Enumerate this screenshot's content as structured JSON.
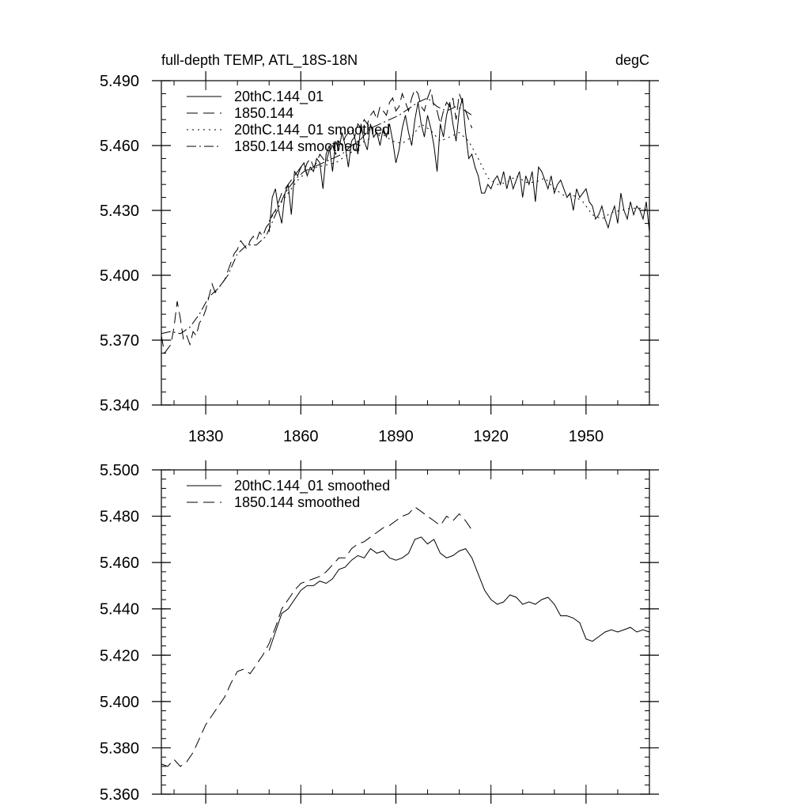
{
  "chart_data": [
    {
      "type": "line",
      "title": "full-depth TEMP, ATL_18S-18N",
      "units": "degC",
      "xlim": [
        1816,
        1970
      ],
      "ylim": [
        5.34,
        5.49
      ],
      "xticks": [
        1830,
        1860,
        1890,
        1920,
        1950
      ],
      "xtick_labels": [
        "1830",
        "1860",
        "1890",
        "1920",
        "1950"
      ],
      "yticks": [
        5.34,
        5.37,
        5.4,
        5.43,
        5.46,
        5.49
      ],
      "ytick_labels": [
        "5.340",
        "5.370",
        "5.400",
        "5.430",
        "5.460",
        "5.490"
      ],
      "legend_position": "top-left",
      "grid": false,
      "series": [
        {
          "name": "20thC.144_01",
          "style": "solid",
          "x": [
            1850,
            1851,
            1852,
            1853,
            1854,
            1855,
            1856,
            1857,
            1858,
            1859,
            1860,
            1861,
            1862,
            1863,
            1864,
            1865,
            1866,
            1867,
            1868,
            1869,
            1870,
            1871,
            1872,
            1873,
            1874,
            1875,
            1876,
            1877,
            1878,
            1879,
            1880,
            1881,
            1882,
            1883,
            1884,
            1885,
            1886,
            1887,
            1888,
            1889,
            1890,
            1891,
            1892,
            1893,
            1894,
            1895,
            1896,
            1897,
            1898,
            1899,
            1900,
            1901,
            1902,
            1903,
            1904,
            1905,
            1906,
            1907,
            1908,
            1909,
            1910,
            1911,
            1912,
            1913,
            1914,
            1915,
            1916,
            1917,
            1918,
            1919,
            1920,
            1921,
            1922,
            1923,
            1924,
            1925,
            1926,
            1927,
            1928,
            1929,
            1930,
            1931,
            1932,
            1933,
            1934,
            1935,
            1936,
            1937,
            1938,
            1939,
            1940,
            1941,
            1942,
            1943,
            1944,
            1945,
            1946,
            1947,
            1948,
            1949,
            1950,
            1951,
            1952,
            1953,
            1954,
            1955,
            1956,
            1957,
            1958,
            1959,
            1960,
            1961,
            1962,
            1963,
            1964,
            1965,
            1966,
            1967,
            1968,
            1969,
            1970
          ],
          "values": [
            5.42,
            5.436,
            5.44,
            5.43,
            5.424,
            5.438,
            5.442,
            5.428,
            5.448,
            5.446,
            5.45,
            5.452,
            5.446,
            5.45,
            5.448,
            5.454,
            5.452,
            5.44,
            5.456,
            5.46,
            5.448,
            5.462,
            5.458,
            5.466,
            5.46,
            5.45,
            5.462,
            5.464,
            5.456,
            5.47,
            5.462,
            5.458,
            5.47,
            5.464,
            5.466,
            5.46,
            5.468,
            5.464,
            5.47,
            5.462,
            5.452,
            5.458,
            5.468,
            5.474,
            5.466,
            5.46,
            5.472,
            5.48,
            5.47,
            5.464,
            5.474,
            5.468,
            5.46,
            5.448,
            5.47,
            5.464,
            5.474,
            5.48,
            5.47,
            5.462,
            5.476,
            5.482,
            5.466,
            5.454,
            5.456,
            5.45,
            5.446,
            5.438,
            5.438,
            5.442,
            5.44,
            5.444,
            5.446,
            5.442,
            5.448,
            5.44,
            5.446,
            5.44,
            5.444,
            5.448,
            5.436,
            5.446,
            5.442,
            5.448,
            5.434,
            5.45,
            5.448,
            5.444,
            5.44,
            5.446,
            5.438,
            5.442,
            5.444,
            5.44,
            5.436,
            5.438,
            5.43,
            5.44,
            5.436,
            5.438,
            5.44,
            5.434,
            5.432,
            5.426,
            5.428,
            5.432,
            5.426,
            5.422,
            5.428,
            5.432,
            5.424,
            5.438,
            5.43,
            5.426,
            5.434,
            5.428,
            5.432,
            5.43,
            5.426,
            5.434,
            5.42
          ]
        },
        {
          "name": "1850.144",
          "style": "dashed",
          "x": [
            1816,
            1817,
            1818,
            1819,
            1820,
            1821,
            1822,
            1823,
            1824,
            1825,
            1826,
            1827,
            1828,
            1829,
            1830,
            1831,
            1832,
            1833,
            1834,
            1835,
            1836,
            1837,
            1838,
            1839,
            1840,
            1841,
            1842,
            1843,
            1844,
            1845,
            1846,
            1847,
            1848,
            1849,
            1850,
            1851,
            1852,
            1853,
            1854,
            1855,
            1856,
            1857,
            1858,
            1859,
            1860,
            1861,
            1862,
            1863,
            1864,
            1865,
            1866,
            1867,
            1868,
            1869,
            1870,
            1871,
            1872,
            1873,
            1874,
            1875,
            1876,
            1877,
            1878,
            1879,
            1880,
            1881,
            1882,
            1883,
            1884,
            1885,
            1886,
            1887,
            1888,
            1889,
            1890,
            1891,
            1892,
            1893,
            1894,
            1895,
            1896,
            1897,
            1898,
            1899,
            1900,
            1901,
            1902,
            1903,
            1904,
            1905,
            1906,
            1907,
            1908,
            1909,
            1910,
            1911,
            1912,
            1913,
            1914
          ],
          "values": [
            5.372,
            5.364,
            5.366,
            5.368,
            5.376,
            5.388,
            5.38,
            5.37,
            5.372,
            5.368,
            5.374,
            5.372,
            5.378,
            5.38,
            5.384,
            5.39,
            5.396,
            5.392,
            5.394,
            5.396,
            5.398,
            5.402,
            5.406,
            5.41,
            5.412,
            5.416,
            5.414,
            5.412,
            5.416,
            5.418,
            5.416,
            5.42,
            5.418,
            5.422,
            5.424,
            5.428,
            5.43,
            5.434,
            5.438,
            5.44,
            5.442,
            5.444,
            5.446,
            5.448,
            5.45,
            5.448,
            5.452,
            5.454,
            5.45,
            5.452,
            5.456,
            5.454,
            5.452,
            5.458,
            5.46,
            5.456,
            5.462,
            5.46,
            5.464,
            5.466,
            5.468,
            5.464,
            5.47,
            5.468,
            5.472,
            5.47,
            5.474,
            5.476,
            5.472,
            5.478,
            5.476,
            5.474,
            5.48,
            5.482,
            5.476,
            5.478,
            5.484,
            5.48,
            5.476,
            5.482,
            5.486,
            5.484,
            5.478,
            5.476,
            5.482,
            5.486,
            5.478,
            5.476,
            5.47,
            5.476,
            5.48,
            5.478,
            5.482,
            5.472,
            5.484,
            5.48,
            5.476,
            5.472,
            5.468
          ]
        },
        {
          "name": "20thC.144_01 smoothed",
          "style": "dotted",
          "x": [
            1850,
            1853,
            1856,
            1859,
            1862,
            1865,
            1868,
            1871,
            1874,
            1877,
            1880,
            1883,
            1886,
            1889,
            1892,
            1895,
            1898,
            1901,
            1904,
            1907,
            1910,
            1913,
            1916,
            1919,
            1922,
            1925,
            1928,
            1931,
            1934,
            1937,
            1940,
            1943,
            1946,
            1949,
            1952,
            1955,
            1958,
            1961,
            1964,
            1967,
            1970
          ],
          "values": [
            5.425,
            5.432,
            5.438,
            5.444,
            5.448,
            5.45,
            5.451,
            5.452,
            5.455,
            5.458,
            5.462,
            5.464,
            5.465,
            5.462,
            5.461,
            5.464,
            5.47,
            5.467,
            5.462,
            5.464,
            5.466,
            5.462,
            5.454,
            5.445,
            5.442,
            5.443,
            5.446,
            5.443,
            5.443,
            5.445,
            5.44,
            5.437,
            5.437,
            5.434,
            5.428,
            5.426,
            5.429,
            5.43,
            5.431,
            5.431,
            5.43
          ]
        },
        {
          "name": "1850.144 smoothed",
          "style": "dashdot",
          "x": [
            1816,
            1819,
            1822,
            1825,
            1828,
            1831,
            1834,
            1837,
            1840,
            1843,
            1846,
            1849,
            1852,
            1855,
            1858,
            1861,
            1864,
            1867,
            1870,
            1873,
            1876,
            1879,
            1882,
            1885,
            1888,
            1891,
            1894,
            1897,
            1900,
            1903,
            1906,
            1909,
            1912,
            1914
          ],
          "values": [
            5.373,
            5.374,
            5.373,
            5.376,
            5.382,
            5.39,
            5.394,
            5.4,
            5.41,
            5.414,
            5.414,
            5.418,
            5.428,
            5.438,
            5.444,
            5.448,
            5.45,
            5.452,
            5.454,
            5.456,
            5.46,
            5.463,
            5.468,
            5.47,
            5.472,
            5.474,
            5.477,
            5.48,
            5.482,
            5.478,
            5.476,
            5.478,
            5.476,
            5.474
          ]
        }
      ]
    },
    {
      "type": "line",
      "xlim": [
        1816,
        1970
      ],
      "ylim": [
        5.36,
        5.5
      ],
      "xticks": [
        1830,
        1860,
        1890,
        1920,
        1950
      ],
      "xtick_labels": [],
      "yticks": [
        5.36,
        5.38,
        5.4,
        5.42,
        5.44,
        5.46,
        5.48,
        5.5
      ],
      "ytick_labels": [
        "5.360",
        "5.380",
        "5.400",
        "5.420",
        "5.440",
        "5.460",
        "5.480",
        "5.500"
      ],
      "legend_position": "top-left",
      "grid": false,
      "series": [
        {
          "name": "20thC.144_01 smoothed",
          "style": "solid",
          "x": [
            1850,
            1852,
            1854,
            1856,
            1858,
            1860,
            1862,
            1864,
            1866,
            1868,
            1870,
            1872,
            1874,
            1876,
            1878,
            1880,
            1882,
            1884,
            1886,
            1888,
            1890,
            1892,
            1894,
            1896,
            1898,
            1900,
            1902,
            1904,
            1906,
            1908,
            1910,
            1912,
            1914,
            1916,
            1918,
            1920,
            1922,
            1924,
            1926,
            1928,
            1930,
            1932,
            1934,
            1936,
            1938,
            1940,
            1942,
            1944,
            1946,
            1948,
            1950,
            1952,
            1954,
            1956,
            1958,
            1960,
            1962,
            1964,
            1966,
            1968,
            1970
          ],
          "values": [
            5.422,
            5.43,
            5.438,
            5.44,
            5.444,
            5.448,
            5.45,
            5.45,
            5.452,
            5.451,
            5.453,
            5.457,
            5.458,
            5.461,
            5.463,
            5.462,
            5.466,
            5.464,
            5.465,
            5.462,
            5.461,
            5.462,
            5.464,
            5.47,
            5.471,
            5.468,
            5.47,
            5.464,
            5.462,
            5.463,
            5.465,
            5.466,
            5.462,
            5.455,
            5.448,
            5.444,
            5.442,
            5.443,
            5.446,
            5.445,
            5.442,
            5.443,
            5.442,
            5.444,
            5.445,
            5.442,
            5.437,
            5.437,
            5.436,
            5.434,
            5.427,
            5.426,
            5.428,
            5.43,
            5.431,
            5.43,
            5.431,
            5.432,
            5.43,
            5.431,
            5.43
          ]
        },
        {
          "name": "1850.144 smoothed",
          "style": "dashed",
          "x": [
            1816,
            1818,
            1820,
            1822,
            1824,
            1826,
            1828,
            1830,
            1832,
            1834,
            1836,
            1838,
            1840,
            1842,
            1844,
            1846,
            1848,
            1850,
            1852,
            1854,
            1856,
            1858,
            1860,
            1862,
            1864,
            1866,
            1868,
            1870,
            1872,
            1874,
            1876,
            1878,
            1880,
            1882,
            1884,
            1886,
            1888,
            1890,
            1892,
            1894,
            1896,
            1898,
            1900,
            1902,
            1904,
            1906,
            1908,
            1910,
            1912,
            1914
          ],
          "values": [
            5.373,
            5.372,
            5.375,
            5.372,
            5.374,
            5.378,
            5.384,
            5.39,
            5.394,
            5.398,
            5.402,
            5.408,
            5.413,
            5.414,
            5.412,
            5.416,
            5.42,
            5.425,
            5.432,
            5.44,
            5.444,
            5.448,
            5.451,
            5.452,
            5.453,
            5.454,
            5.456,
            5.459,
            5.462,
            5.462,
            5.466,
            5.468,
            5.469,
            5.471,
            5.473,
            5.475,
            5.476,
            5.478,
            5.48,
            5.481,
            5.484,
            5.482,
            5.48,
            5.478,
            5.476,
            5.48,
            5.478,
            5.481,
            5.478,
            5.474
          ]
        }
      ]
    }
  ]
}
